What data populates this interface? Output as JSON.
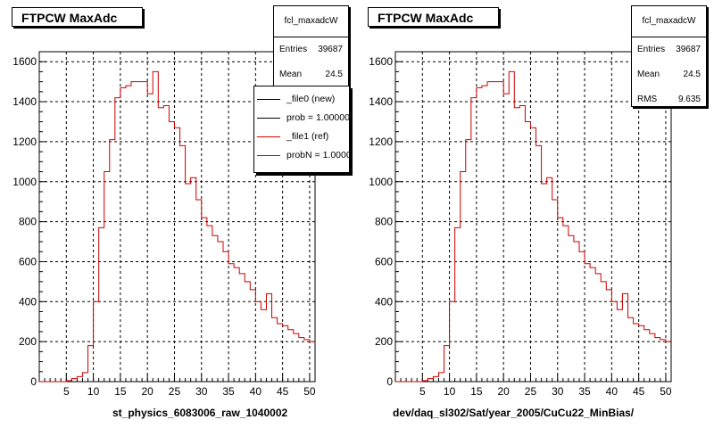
{
  "chart_data": [
    {
      "type": "histogram",
      "title": "FTPCW MaxAdc",
      "xlabel": "st_physics_6083006_raw_1040002",
      "ylabel": "",
      "xlim": [
        0,
        51
      ],
      "ylim": [
        0,
        1650
      ],
      "xticks": [
        5,
        10,
        15,
        20,
        25,
        30,
        35,
        40,
        45,
        50
      ],
      "yticks": [
        0,
        200,
        400,
        600,
        800,
        1000,
        1200,
        1400,
        1600
      ],
      "grid": true,
      "bin_width": 1,
      "series": [
        {
          "name": "_file1 (ref)",
          "color": "#cc0000",
          "x": [
            0,
            1,
            2,
            3,
            4,
            5,
            6,
            7,
            8,
            9,
            10,
            11,
            12,
            13,
            14,
            15,
            16,
            17,
            18,
            19,
            20,
            21,
            22,
            23,
            24,
            25,
            26,
            27,
            28,
            29,
            30,
            31,
            32,
            33,
            34,
            35,
            36,
            37,
            38,
            39,
            40,
            41,
            42,
            43,
            44,
            45,
            46,
            47,
            48,
            49,
            50
          ],
          "values": [
            0,
            0,
            0,
            0,
            0,
            5,
            15,
            25,
            45,
            180,
            400,
            770,
            1050,
            1210,
            1420,
            1470,
            1480,
            1500,
            1500,
            1500,
            1440,
            1550,
            1370,
            1380,
            1300,
            1270,
            1180,
            990,
            1020,
            910,
            820,
            780,
            730,
            700,
            650,
            590,
            570,
            540,
            500,
            460,
            400,
            360,
            440,
            320,
            290,
            280,
            260,
            240,
            220,
            210,
            200
          ],
          "note": ""
        }
      ],
      "stats": {
        "name": "fcl_maxadcW",
        "entries_label": "Entries",
        "entries": "39687",
        "mean_label": "Mean",
        "mean": "24.5"
      },
      "legend": {
        "placement": "top-right",
        "entries": [
          {
            "label": "_file0 (new)",
            "color": "#000000"
          },
          {
            "label": "prob = 1.000000",
            "color": "#000000"
          },
          {
            "label": "_file1 (ref)",
            "color": "#cc0000"
          },
          {
            "label": "probN = 1.000000",
            "color": "#cc0000"
          }
        ]
      }
    },
    {
      "type": "histogram",
      "title": "FTPCW MaxAdc",
      "xlabel": "dev/daq_sl302/Sat/year_2005/CuCu22_MinBias/",
      "ylabel": "",
      "xlim": [
        0,
        51
      ],
      "ylim": [
        0,
        1650
      ],
      "xticks": [
        5,
        10,
        15,
        20,
        25,
        30,
        35,
        40,
        45,
        50
      ],
      "yticks": [
        0,
        200,
        400,
        600,
        800,
        1000,
        1200,
        1400,
        1600
      ],
      "grid": true,
      "bin_width": 1,
      "series": [
        {
          "name": "",
          "color": "#cc0000",
          "x": [
            0,
            1,
            2,
            3,
            4,
            5,
            6,
            7,
            8,
            9,
            10,
            11,
            12,
            13,
            14,
            15,
            16,
            17,
            18,
            19,
            20,
            21,
            22,
            23,
            24,
            25,
            26,
            27,
            28,
            29,
            30,
            31,
            32,
            33,
            34,
            35,
            36,
            37,
            38,
            39,
            40,
            41,
            42,
            43,
            44,
            45,
            46,
            47,
            48,
            49,
            50
          ],
          "values": [
            0,
            0,
            0,
            0,
            0,
            5,
            15,
            25,
            45,
            180,
            400,
            770,
            1050,
            1210,
            1420,
            1470,
            1480,
            1500,
            1500,
            1500,
            1440,
            1550,
            1370,
            1380,
            1300,
            1270,
            1180,
            990,
            1020,
            910,
            820,
            780,
            730,
            700,
            650,
            590,
            570,
            540,
            500,
            460,
            400,
            360,
            440,
            320,
            290,
            280,
            260,
            240,
            220,
            210,
            200
          ]
        }
      ],
      "stats": {
        "name": "fcl_maxadcW",
        "entries_label": "Entries",
        "entries": "39687",
        "mean_label": "Mean",
        "mean": "24.5",
        "rms_label": "RMS",
        "rms": "9.635"
      }
    }
  ]
}
